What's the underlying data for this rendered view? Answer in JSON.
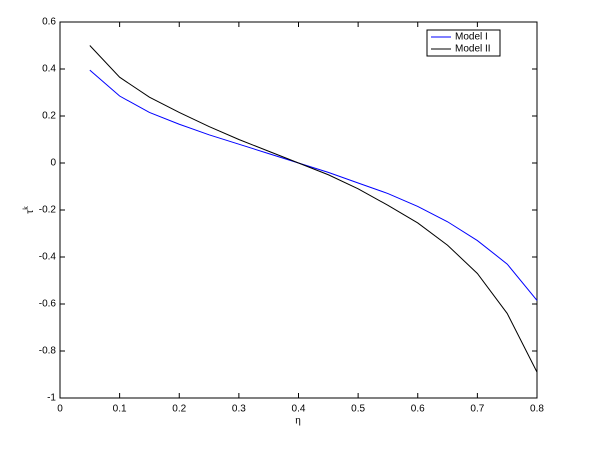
{
  "chart_data": {
    "type": "line",
    "xlabel": "η",
    "ylabel": "τ",
    "ylabel_superscript": "k",
    "x": [
      0.05,
      0.1,
      0.15,
      0.2,
      0.25,
      0.3,
      0.35,
      0.4,
      0.45,
      0.5,
      0.55,
      0.6,
      0.65,
      0.7,
      0.75,
      0.8
    ],
    "series": [
      {
        "name": "Model I",
        "color": "#0000ff",
        "values": [
          0.395,
          0.285,
          0.215,
          0.165,
          0.12,
          0.08,
          0.04,
          0.0,
          -0.04,
          -0.085,
          -0.13,
          -0.185,
          -0.25,
          -0.33,
          -0.43,
          -0.585
        ]
      },
      {
        "name": "Model II",
        "color": "#000000",
        "values": [
          0.5,
          0.365,
          0.28,
          0.215,
          0.155,
          0.1,
          0.05,
          0.0,
          -0.05,
          -0.11,
          -0.18,
          -0.255,
          -0.35,
          -0.47,
          -0.64,
          -0.89
        ]
      }
    ],
    "xlim": [
      0,
      0.8
    ],
    "xticks": [
      0,
      0.1,
      0.2,
      0.3,
      0.4,
      0.5,
      0.6,
      0.7,
      0.8
    ],
    "ylim": [
      -1,
      0.6
    ],
    "yticks": [
      -1,
      -0.8,
      -0.6,
      -0.4,
      -0.2,
      0,
      0.2,
      0.4,
      0.6
    ],
    "grid": false,
    "legend": "northeast"
  }
}
